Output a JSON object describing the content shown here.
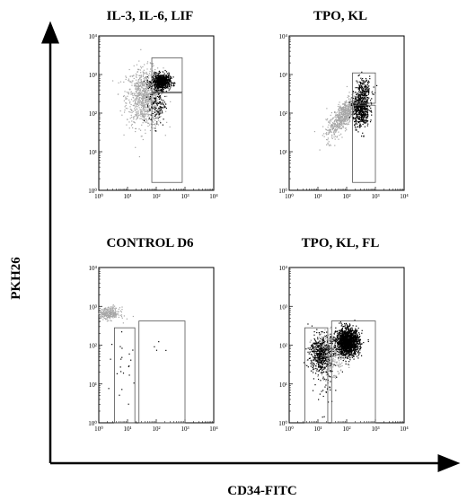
{
  "axes": {
    "xlabel": "CD34-FITC",
    "ylabel": "PKH26"
  },
  "chart_data": [
    {
      "type": "scatter",
      "title": "IL-3, IL-6, LIF",
      "xscale": "log",
      "yscale": "log",
      "xlim": [
        1,
        10000
      ],
      "ylim": [
        1,
        10000
      ],
      "x_ticks": [
        "10⁰",
        "10¹",
        "10²",
        "10³",
        "10⁴"
      ],
      "y_ticks": [
        "10⁰",
        "10¹",
        "10²",
        "10³",
        "10⁴"
      ],
      "gates": [
        {
          "x": [
            70,
            800
          ],
          "y": [
            350,
            2700
          ]
        },
        {
          "x": [
            70,
            800
          ],
          "y": [
            1.6,
            330
          ]
        }
      ],
      "populations": [
        {
          "color": "#a6a6a6",
          "cx": 40,
          "cy": 250,
          "sx": 0.32,
          "sy": 0.38,
          "n": 900
        },
        {
          "color": "#000000",
          "cx": 150,
          "cy": 650,
          "sx": 0.16,
          "sy": 0.1,
          "n": 650
        },
        {
          "color": "#000000",
          "cx": 110,
          "cy": 180,
          "sx": 0.14,
          "sy": 0.3,
          "n": 140
        }
      ]
    },
    {
      "type": "scatter",
      "title": "TPO, KL",
      "xscale": "log",
      "yscale": "log",
      "xlim": [
        1,
        10000
      ],
      "ylim": [
        1,
        10000
      ],
      "x_ticks": [
        "10⁰",
        "10¹",
        "10²",
        "10³",
        "10⁴"
      ],
      "y_ticks": [
        "10⁰",
        "10¹",
        "10²",
        "10³",
        "10⁴"
      ],
      "gates": [
        {
          "x": [
            160,
            1000
          ],
          "y": [
            180,
            1100
          ]
        },
        {
          "x": [
            160,
            1000
          ],
          "y": [
            1.6,
            160
          ]
        }
      ],
      "populations": [
        {
          "color": "#a6a6a6",
          "cx": 80,
          "cy": 90,
          "sx": 0.3,
          "sy": 0.3,
          "corr": 0.8,
          "n": 700
        },
        {
          "color": "#000000",
          "cx": 320,
          "cy": 120,
          "sx": 0.14,
          "sy": 0.22,
          "n": 500
        },
        {
          "color": "#000000",
          "cx": 400,
          "cy": 400,
          "sx": 0.15,
          "sy": 0.18,
          "n": 150
        }
      ]
    },
    {
      "type": "scatter",
      "title": "CONTROL D6",
      "xscale": "log",
      "yscale": "log",
      "xlim": [
        1,
        10000
      ],
      "ylim": [
        1,
        10000
      ],
      "x_ticks": [
        "10⁰",
        "10¹",
        "10²",
        "10³",
        "10⁴"
      ],
      "y_ticks": [
        "10⁰",
        "10¹",
        "10²",
        "10³",
        "10⁴"
      ],
      "gates": [
        {
          "x": [
            3.5,
            18
          ],
          "y": [
            1,
            280
          ]
        },
        {
          "x": [
            25,
            1000
          ],
          "y": [
            1,
            420
          ]
        }
      ],
      "populations": [
        {
          "color": "#a6a6a6",
          "cx": 2.2,
          "cy": 650,
          "sx": 0.2,
          "sy": 0.08,
          "n": 280
        },
        {
          "color": "#000000",
          "cx": 9,
          "cy": 20,
          "sx": 0.22,
          "sy": 0.45,
          "n": 22
        },
        {
          "color": "#000000",
          "cx": 150,
          "cy": 70,
          "sx": 0.25,
          "sy": 0.25,
          "n": 4
        }
      ]
    },
    {
      "type": "scatter",
      "title": "TPO, KL, FL",
      "xscale": "log",
      "yscale": "log",
      "xlim": [
        1,
        10000
      ],
      "ylim": [
        1,
        10000
      ],
      "x_ticks": [
        "10⁰",
        "10¹",
        "10²",
        "10³",
        "10⁴"
      ],
      "y_ticks": [
        "10⁰",
        "10¹",
        "10²",
        "10³",
        "10⁴"
      ],
      "gates": [
        {
          "x": [
            3.5,
            22
          ],
          "y": [
            1,
            280
          ]
        },
        {
          "x": [
            30,
            1000
          ],
          "y": [
            1,
            420
          ]
        }
      ],
      "populations": [
        {
          "color": "#a6a6a6",
          "cx": 25,
          "cy": 60,
          "sx": 0.3,
          "sy": 0.25,
          "n": 450
        },
        {
          "color": "#000000",
          "cx": 110,
          "cy": 120,
          "sx": 0.2,
          "sy": 0.17,
          "n": 1500
        },
        {
          "color": "#000000",
          "cx": 12,
          "cy": 60,
          "sx": 0.18,
          "sy": 0.24,
          "n": 450
        },
        {
          "color": "#000000",
          "cx": 20,
          "cy": 10,
          "sx": 0.2,
          "sy": 0.35,
          "n": 45
        }
      ]
    }
  ]
}
